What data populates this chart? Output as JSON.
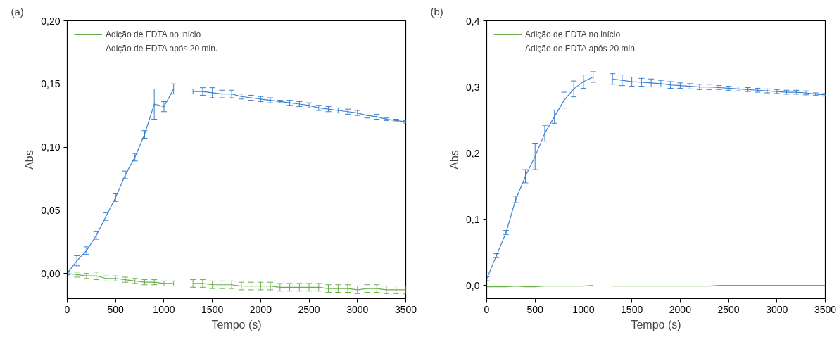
{
  "chart_data": [
    {
      "type": "line",
      "annotations": [
        "(a)"
      ],
      "xlabel": "Tempo (s)",
      "ylabel": "Abs",
      "x": [
        0,
        100,
        200,
        300,
        400,
        500,
        600,
        700,
        800,
        900,
        1000,
        1100,
        1200,
        1300,
        1400,
        1500,
        1600,
        1700,
        1800,
        1900,
        2000,
        2100,
        2200,
        2300,
        2400,
        2500,
        2600,
        2700,
        2800,
        2900,
        3000,
        3100,
        3200,
        3300,
        3400,
        3500
      ],
      "xlim": [
        0,
        3500
      ],
      "xticks": [
        0,
        500,
        1000,
        1500,
        2000,
        2500,
        3000,
        3500
      ],
      "ylim": [
        -0.02,
        0.2
      ],
      "yticks": [
        {
          "value": 0,
          "label": "0,00"
        },
        {
          "value": 0.05,
          "label": "0,05"
        },
        {
          "value": 0.1,
          "label": "0,10"
        },
        {
          "value": 0.15,
          "label": "0,15"
        },
        {
          "value": 0.2,
          "label": "0,20"
        }
      ],
      "grid": false,
      "legend": "top left",
      "marker": "none",
      "line_style": "solid",
      "series": [
        {
          "name": "Adição de EDTA no início",
          "color": "#6aaf4a",
          "values": [
            0.0,
            -0.001,
            -0.002,
            -0.002,
            -0.004,
            -0.004,
            -0.005,
            -0.006,
            -0.007,
            -0.007,
            -0.008,
            -0.008,
            null,
            -0.008,
            -0.008,
            -0.009,
            -0.009,
            -0.009,
            -0.01,
            -0.01,
            -0.01,
            -0.01,
            -0.011,
            -0.011,
            -0.011,
            -0.011,
            -0.011,
            -0.012,
            -0.012,
            -0.012,
            -0.013,
            -0.012,
            -0.012,
            -0.013,
            -0.013,
            -0.013
          ],
          "errors": [
            0.002,
            0.002,
            0.002,
            0.003,
            0.002,
            0.002,
            0.002,
            0.002,
            0.002,
            0.002,
            0.002,
            0.002,
            null,
            0.003,
            0.003,
            0.003,
            0.003,
            0.003,
            0.003,
            0.003,
            0.003,
            0.003,
            0.003,
            0.003,
            0.003,
            0.003,
            0.003,
            0.003,
            0.003,
            0.003,
            0.003,
            0.003,
            0.003,
            0.003,
            0.003,
            0.003
          ]
        },
        {
          "name": "Adição de EDTA após 20 min.",
          "color": "#3a7fcc",
          "values": [
            0.0,
            0.01,
            0.018,
            0.03,
            0.045,
            0.06,
            0.078,
            0.092,
            0.11,
            0.134,
            0.132,
            0.146,
            null,
            0.144,
            0.144,
            0.143,
            0.142,
            0.142,
            0.14,
            0.139,
            0.138,
            0.137,
            0.136,
            0.135,
            0.134,
            0.133,
            0.131,
            0.13,
            0.129,
            0.128,
            0.127,
            0.125,
            0.124,
            0.122,
            0.121,
            0.12
          ],
          "errors": [
            0.001,
            0.004,
            0.003,
            0.003,
            0.003,
            0.003,
            0.003,
            0.003,
            0.003,
            0.012,
            0.004,
            0.004,
            null,
            0.002,
            0.003,
            0.004,
            0.003,
            0.003,
            0.002,
            0.002,
            0.002,
            0.002,
            0.001,
            0.002,
            0.002,
            0.002,
            0.002,
            0.002,
            0.002,
            0.002,
            0.002,
            0.002,
            0.002,
            0.001,
            0.001,
            0.001
          ]
        }
      ]
    },
    {
      "type": "line",
      "annotations": [
        "(b)"
      ],
      "xlabel": "Tempo (s)",
      "ylabel": "Abs",
      "x": [
        0,
        100,
        200,
        300,
        400,
        500,
        600,
        700,
        800,
        900,
        1000,
        1100,
        1200,
        1300,
        1400,
        1500,
        1600,
        1700,
        1800,
        1900,
        2000,
        2100,
        2200,
        2300,
        2400,
        2500,
        2600,
        2700,
        2800,
        2900,
        3000,
        3100,
        3200,
        3300,
        3400,
        3500
      ],
      "xlim": [
        0,
        3500
      ],
      "xticks": [
        0,
        500,
        1000,
        1500,
        2000,
        2500,
        3000,
        3500
      ],
      "ylim": [
        -0.02,
        0.4
      ],
      "yticks": [
        {
          "value": 0,
          "label": "0,0"
        },
        {
          "value": 0.1,
          "label": "0,1"
        },
        {
          "value": 0.2,
          "label": "0,2"
        },
        {
          "value": 0.3,
          "label": "0,3"
        },
        {
          "value": 0.4,
          "label": "0,4"
        }
      ],
      "grid": false,
      "legend": "top left",
      "marker": "none",
      "line_style": "solid",
      "series": [
        {
          "name": "Adição de EDTA no início",
          "color": "#6aaf4a",
          "values": [
            -0.002,
            -0.002,
            -0.002,
            -0.001,
            -0.002,
            -0.002,
            -0.001,
            -0.001,
            -0.001,
            -0.001,
            -0.001,
            0.0,
            null,
            -0.001,
            -0.001,
            -0.001,
            -0.001,
            -0.001,
            -0.001,
            -0.001,
            -0.001,
            -0.001,
            -0.001,
            -0.001,
            0.0,
            0.0,
            0.0,
            0.0,
            0.0,
            0.0,
            0.0,
            0.0,
            0.0,
            0.0,
            0.0,
            0.0
          ]
        },
        {
          "name": "Adição de EDTA após 20 min.",
          "color": "#3a7fcc",
          "values": [
            0.01,
            0.045,
            0.08,
            0.13,
            0.165,
            0.195,
            0.23,
            0.255,
            0.28,
            0.297,
            0.308,
            0.315,
            null,
            0.312,
            0.31,
            0.308,
            0.307,
            0.306,
            0.305,
            0.303,
            0.302,
            0.301,
            0.3,
            0.3,
            0.299,
            0.298,
            0.297,
            0.296,
            0.295,
            0.294,
            0.293,
            0.292,
            0.292,
            0.291,
            0.289,
            0.288
          ],
          "errors": [
            0.003,
            0.003,
            0.003,
            0.005,
            0.01,
            0.02,
            0.012,
            0.01,
            0.012,
            0.012,
            0.01,
            0.008,
            null,
            0.008,
            0.008,
            0.007,
            0.006,
            0.006,
            0.005,
            0.005,
            0.004,
            0.004,
            0.004,
            0.004,
            0.003,
            0.003,
            0.003,
            0.003,
            0.003,
            0.003,
            0.003,
            0.003,
            0.003,
            0.003,
            0.002,
            0.002
          ]
        }
      ]
    }
  ]
}
